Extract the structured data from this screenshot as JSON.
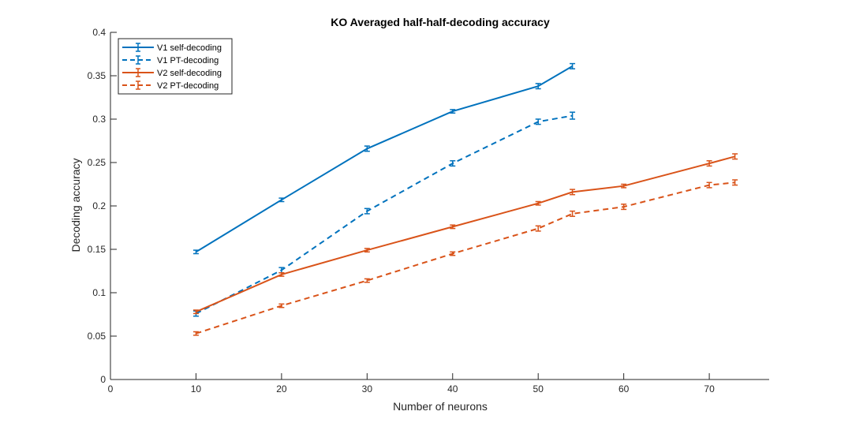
{
  "chart_data": {
    "type": "line",
    "title": "KO Averaged half-half-decoding accuracy",
    "xlabel": "Number of neurons",
    "ylabel": "Decoding accuracy",
    "xlim": [
      0,
      77
    ],
    "ylim": [
      0,
      0.4
    ],
    "xticks": [
      "0",
      "10",
      "20",
      "30",
      "40",
      "50",
      "60",
      "70"
    ],
    "yticks": [
      "0",
      "0.05",
      "0.1",
      "0.15",
      "0.2",
      "0.25",
      "0.3",
      "0.35",
      "0.4"
    ],
    "grid": false,
    "legend_position": "top-left",
    "error_bars": true,
    "series": [
      {
        "name": "V1 self-decoding",
        "color": "#0072BD",
        "dash": "solid",
        "x": [
          10,
          20,
          30,
          40,
          50,
          54
        ],
        "y": [
          0.147,
          0.207,
          0.266,
          0.309,
          0.338,
          0.361
        ],
        "err": [
          0.002,
          0.002,
          0.003,
          0.002,
          0.003,
          0.003
        ]
      },
      {
        "name": "V1 PT-decoding",
        "color": "#0072BD",
        "dash": "dashed",
        "x": [
          10,
          20,
          30,
          40,
          50,
          54
        ],
        "y": [
          0.076,
          0.126,
          0.194,
          0.249,
          0.297,
          0.304
        ],
        "err": [
          0.003,
          0.003,
          0.003,
          0.003,
          0.003,
          0.004
        ]
      },
      {
        "name": "V2 self-decoding",
        "color": "#D95319",
        "dash": "solid",
        "x": [
          10,
          20,
          30,
          40,
          50,
          54,
          60,
          70,
          73
        ],
        "y": [
          0.078,
          0.121,
          0.149,
          0.176,
          0.203,
          0.216,
          0.223,
          0.249,
          0.257
        ],
        "err": [
          0.002,
          0.002,
          0.002,
          0.002,
          0.002,
          0.003,
          0.002,
          0.003,
          0.003
        ]
      },
      {
        "name": "V2 PT-decoding",
        "color": "#D95319",
        "dash": "dashed",
        "x": [
          10,
          20,
          30,
          40,
          50,
          54,
          60,
          70,
          73
        ],
        "y": [
          0.053,
          0.085,
          0.114,
          0.145,
          0.174,
          0.191,
          0.199,
          0.224,
          0.227
        ],
        "err": [
          0.002,
          0.002,
          0.002,
          0.002,
          0.003,
          0.003,
          0.003,
          0.003,
          0.003
        ]
      }
    ]
  }
}
